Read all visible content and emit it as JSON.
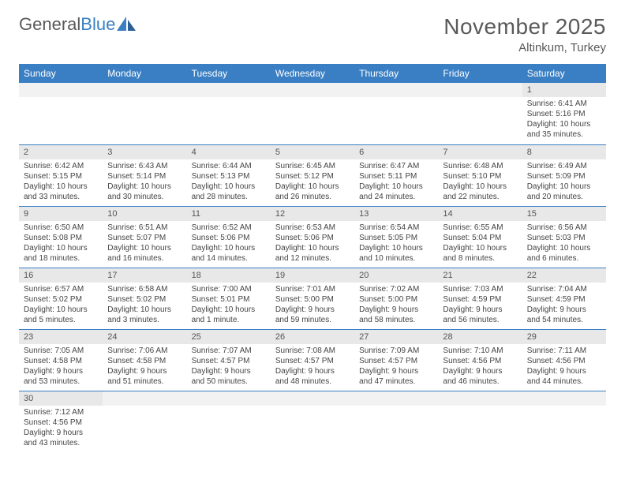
{
  "logo": {
    "text1": "General",
    "text2": "Blue"
  },
  "header": {
    "title": "November 2025",
    "location": "Altinkum, Turkey"
  },
  "style": {
    "header_bg": "#3a7fc4",
    "header_fg": "#ffffff",
    "daynum_bg": "#e8e8e8",
    "border_color": "#3a7fc4",
    "text_color": "#444444"
  },
  "days_of_week": [
    "Sunday",
    "Monday",
    "Tuesday",
    "Wednesday",
    "Thursday",
    "Friday",
    "Saturday"
  ],
  "weeks": [
    [
      null,
      null,
      null,
      null,
      null,
      null,
      {
        "n": "1",
        "sr": "6:41 AM",
        "ss": "5:16 PM",
        "dl": "10 hours and 35 minutes."
      }
    ],
    [
      {
        "n": "2",
        "sr": "6:42 AM",
        "ss": "5:15 PM",
        "dl": "10 hours and 33 minutes."
      },
      {
        "n": "3",
        "sr": "6:43 AM",
        "ss": "5:14 PM",
        "dl": "10 hours and 30 minutes."
      },
      {
        "n": "4",
        "sr": "6:44 AM",
        "ss": "5:13 PM",
        "dl": "10 hours and 28 minutes."
      },
      {
        "n": "5",
        "sr": "6:45 AM",
        "ss": "5:12 PM",
        "dl": "10 hours and 26 minutes."
      },
      {
        "n": "6",
        "sr": "6:47 AM",
        "ss": "5:11 PM",
        "dl": "10 hours and 24 minutes."
      },
      {
        "n": "7",
        "sr": "6:48 AM",
        "ss": "5:10 PM",
        "dl": "10 hours and 22 minutes."
      },
      {
        "n": "8",
        "sr": "6:49 AM",
        "ss": "5:09 PM",
        "dl": "10 hours and 20 minutes."
      }
    ],
    [
      {
        "n": "9",
        "sr": "6:50 AM",
        "ss": "5:08 PM",
        "dl": "10 hours and 18 minutes."
      },
      {
        "n": "10",
        "sr": "6:51 AM",
        "ss": "5:07 PM",
        "dl": "10 hours and 16 minutes."
      },
      {
        "n": "11",
        "sr": "6:52 AM",
        "ss": "5:06 PM",
        "dl": "10 hours and 14 minutes."
      },
      {
        "n": "12",
        "sr": "6:53 AM",
        "ss": "5:06 PM",
        "dl": "10 hours and 12 minutes."
      },
      {
        "n": "13",
        "sr": "6:54 AM",
        "ss": "5:05 PM",
        "dl": "10 hours and 10 minutes."
      },
      {
        "n": "14",
        "sr": "6:55 AM",
        "ss": "5:04 PM",
        "dl": "10 hours and 8 minutes."
      },
      {
        "n": "15",
        "sr": "6:56 AM",
        "ss": "5:03 PM",
        "dl": "10 hours and 6 minutes."
      }
    ],
    [
      {
        "n": "16",
        "sr": "6:57 AM",
        "ss": "5:02 PM",
        "dl": "10 hours and 5 minutes."
      },
      {
        "n": "17",
        "sr": "6:58 AM",
        "ss": "5:02 PM",
        "dl": "10 hours and 3 minutes."
      },
      {
        "n": "18",
        "sr": "7:00 AM",
        "ss": "5:01 PM",
        "dl": "10 hours and 1 minute."
      },
      {
        "n": "19",
        "sr": "7:01 AM",
        "ss": "5:00 PM",
        "dl": "9 hours and 59 minutes."
      },
      {
        "n": "20",
        "sr": "7:02 AM",
        "ss": "5:00 PM",
        "dl": "9 hours and 58 minutes."
      },
      {
        "n": "21",
        "sr": "7:03 AM",
        "ss": "4:59 PM",
        "dl": "9 hours and 56 minutes."
      },
      {
        "n": "22",
        "sr": "7:04 AM",
        "ss": "4:59 PM",
        "dl": "9 hours and 54 minutes."
      }
    ],
    [
      {
        "n": "23",
        "sr": "7:05 AM",
        "ss": "4:58 PM",
        "dl": "9 hours and 53 minutes."
      },
      {
        "n": "24",
        "sr": "7:06 AM",
        "ss": "4:58 PM",
        "dl": "9 hours and 51 minutes."
      },
      {
        "n": "25",
        "sr": "7:07 AM",
        "ss": "4:57 PM",
        "dl": "9 hours and 50 minutes."
      },
      {
        "n": "26",
        "sr": "7:08 AM",
        "ss": "4:57 PM",
        "dl": "9 hours and 48 minutes."
      },
      {
        "n": "27",
        "sr": "7:09 AM",
        "ss": "4:57 PM",
        "dl": "9 hours and 47 minutes."
      },
      {
        "n": "28",
        "sr": "7:10 AM",
        "ss": "4:56 PM",
        "dl": "9 hours and 46 minutes."
      },
      {
        "n": "29",
        "sr": "7:11 AM",
        "ss": "4:56 PM",
        "dl": "9 hours and 44 minutes."
      }
    ],
    [
      {
        "n": "30",
        "sr": "7:12 AM",
        "ss": "4:56 PM",
        "dl": "9 hours and 43 minutes."
      },
      null,
      null,
      null,
      null,
      null,
      null
    ]
  ],
  "labels": {
    "sunrise": "Sunrise:",
    "sunset": "Sunset:",
    "daylight": "Daylight:"
  }
}
